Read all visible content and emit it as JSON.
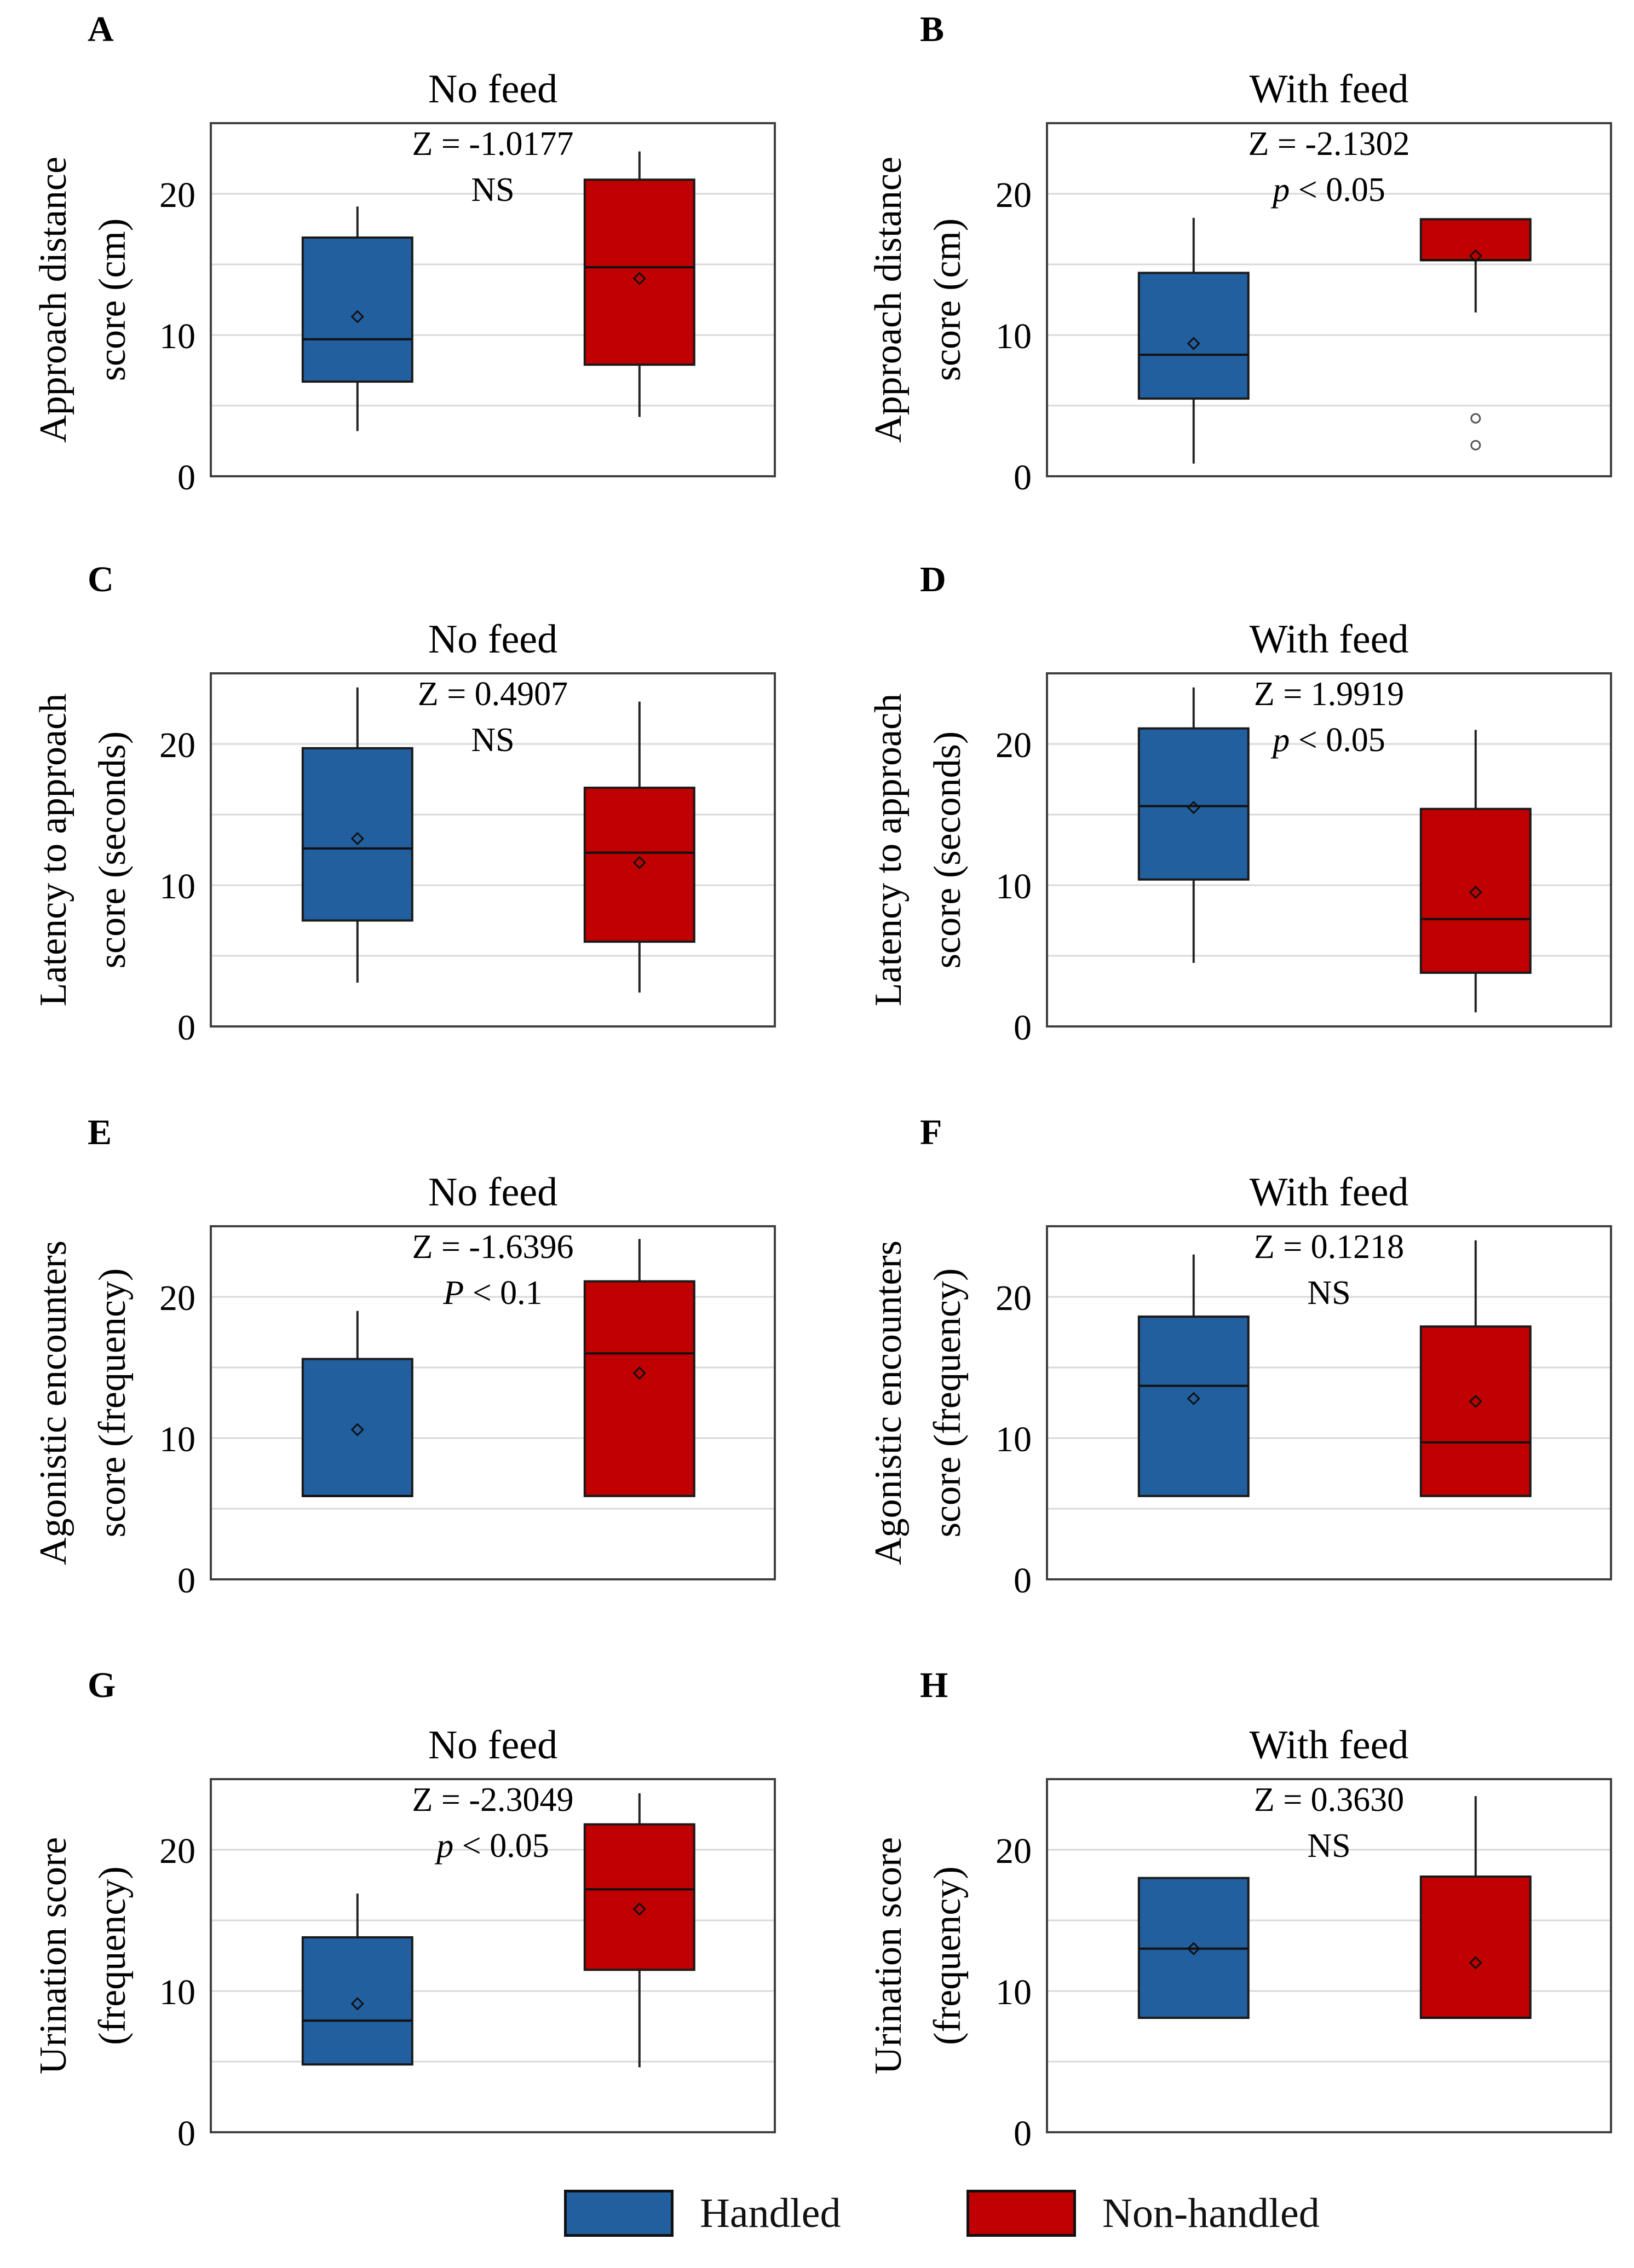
{
  "colors": {
    "handled": "#215f9f",
    "non_handled": "#c00000",
    "grid": "#d9d9d9",
    "frame": "#404040"
  },
  "legend": {
    "handled": "Handled",
    "non_handled": "Non-handled"
  },
  "chart_data": [
    {
      "panel": "A",
      "type": "box",
      "title": "No feed",
      "ylabel": [
        "Approach distance",
        "score (cm)"
      ],
      "ylim": [
        0,
        25
      ],
      "yticks": [
        0,
        10,
        20
      ],
      "grid": true,
      "stat": "Z = -1.0177",
      "sig_text": "NS",
      "series": [
        {
          "name": "Handled",
          "min": 3.2,
          "q1": 6.7,
          "median": 9.7,
          "q3": 16.9,
          "max": 19.1,
          "mean": 11.3,
          "outliers": []
        },
        {
          "name": "Non-handled",
          "min": 4.2,
          "q1": 7.9,
          "median": 14.8,
          "q3": 21.0,
          "max": 23.0,
          "mean": 14.0,
          "outliers": []
        }
      ]
    },
    {
      "panel": "B",
      "type": "box",
      "title": "With feed",
      "ylabel": [
        "Approach distance",
        "score (cm)"
      ],
      "ylim": [
        0,
        25
      ],
      "yticks": [
        0,
        10,
        20
      ],
      "grid": true,
      "stat": "Z = -2.1302",
      "sig_italic": "p",
      "sig_text": " < 0.05",
      "series": [
        {
          "name": "Handled",
          "min": 0.9,
          "q1": 5.5,
          "median": 8.6,
          "q3": 14.4,
          "max": 18.3,
          "mean": 9.4,
          "outliers": []
        },
        {
          "name": "Non-handled",
          "min": 11.6,
          "q1": 15.3,
          "median": 15.3,
          "q3": 18.2,
          "max": 18.2,
          "mean": 15.6,
          "outliers": [
            4.1,
            2.2
          ]
        }
      ]
    },
    {
      "panel": "C",
      "type": "box",
      "title": "No feed",
      "ylabel": [
        "Latency to approach",
        "score (seconds)"
      ],
      "ylim": [
        0,
        25
      ],
      "yticks": [
        0,
        10,
        20
      ],
      "grid": true,
      "stat": "Z = 0.4907",
      "sig_text": "NS",
      "series": [
        {
          "name": "Handled",
          "min": 3.1,
          "q1": 7.5,
          "median": 12.6,
          "q3": 19.7,
          "max": 24.0,
          "mean": 13.3,
          "outliers": []
        },
        {
          "name": "Non-handled",
          "min": 2.4,
          "q1": 6.0,
          "median": 12.3,
          "q3": 16.9,
          "max": 23.0,
          "mean": 11.6,
          "outliers": []
        }
      ]
    },
    {
      "panel": "D",
      "type": "box",
      "title": "With feed",
      "ylabel": [
        "Latency to approach",
        "score (seconds)"
      ],
      "ylim": [
        0,
        25
      ],
      "yticks": [
        0,
        10,
        20
      ],
      "grid": true,
      "stat": "Z = 1.9919",
      "sig_italic": "p",
      "sig_text": " < 0.05",
      "series": [
        {
          "name": "Handled",
          "min": 4.5,
          "q1": 10.4,
          "median": 15.6,
          "q3": 21.1,
          "max": 24.0,
          "mean": 15.5,
          "outliers": []
        },
        {
          "name": "Non-handled",
          "min": 1.0,
          "q1": 3.8,
          "median": 7.6,
          "q3": 15.4,
          "max": 21.0,
          "mean": 9.5,
          "outliers": []
        }
      ]
    },
    {
      "panel": "E",
      "type": "box",
      "title": "No feed",
      "ylabel": [
        "Agonistic encounters",
        "score (frequency)"
      ],
      "ylim": [
        0,
        25
      ],
      "yticks": [
        0,
        10,
        20
      ],
      "grid": true,
      "stat": "Z = -1.6396",
      "sig_italic": "P",
      "sig_text": " < 0.1",
      "series": [
        {
          "name": "Handled",
          "min": 5.9,
          "q1": 5.9,
          "median": 5.9,
          "q3": 15.6,
          "max": 19.0,
          "mean": 10.6,
          "outliers": []
        },
        {
          "name": "Non-handled",
          "min": 5.9,
          "q1": 5.9,
          "median": 16.0,
          "q3": 21.1,
          "max": 24.1,
          "mean": 14.6,
          "outliers": []
        }
      ]
    },
    {
      "panel": "F",
      "type": "box",
      "title": "With feed",
      "ylabel": [
        "Agonistic encounters",
        "score (frequency)"
      ],
      "ylim": [
        0,
        25
      ],
      "yticks": [
        0,
        10,
        20
      ],
      "grid": true,
      "stat": "Z = 0.1218",
      "sig_text": "NS",
      "series": [
        {
          "name": "Handled",
          "min": 5.9,
          "q1": 5.9,
          "median": 13.7,
          "q3": 18.6,
          "max": 23.0,
          "mean": 12.8,
          "outliers": []
        },
        {
          "name": "Non-handled",
          "min": 5.9,
          "q1": 5.9,
          "median": 9.7,
          "q3": 17.9,
          "max": 24.0,
          "mean": 12.6,
          "outliers": []
        }
      ]
    },
    {
      "panel": "G",
      "type": "box",
      "title": "No feed",
      "ylabel": [
        "Urination score",
        "(frequency)"
      ],
      "ylim": [
        0,
        25
      ],
      "yticks": [
        0,
        10,
        20
      ],
      "grid": true,
      "stat": "Z = -2.3049",
      "sig_italic": "p",
      "sig_text": " < 0.05",
      "series": [
        {
          "name": "Handled",
          "min": 4.8,
          "q1": 4.8,
          "median": 7.9,
          "q3": 13.8,
          "max": 16.9,
          "mean": 9.1,
          "outliers": []
        },
        {
          "name": "Non-handled",
          "min": 4.6,
          "q1": 11.5,
          "median": 17.2,
          "q3": 21.8,
          "max": 24.0,
          "mean": 15.8,
          "outliers": []
        }
      ]
    },
    {
      "panel": "H",
      "type": "box",
      "title": "With feed",
      "ylabel": [
        "Urination score",
        "(frequency)"
      ],
      "ylim": [
        0,
        25
      ],
      "yticks": [
        0,
        10,
        20
      ],
      "grid": true,
      "stat": "Z = 0.3630",
      "sig_text": "NS",
      "series": [
        {
          "name": "Handled",
          "min": 8.1,
          "q1": 8.1,
          "median": 13.0,
          "q3": 18.0,
          "max": 18.0,
          "mean": 13.0,
          "outliers": []
        },
        {
          "name": "Non-handled",
          "min": 8.1,
          "q1": 8.1,
          "median": 8.1,
          "q3": 18.1,
          "max": 23.8,
          "mean": 12.0,
          "outliers": []
        }
      ]
    }
  ]
}
